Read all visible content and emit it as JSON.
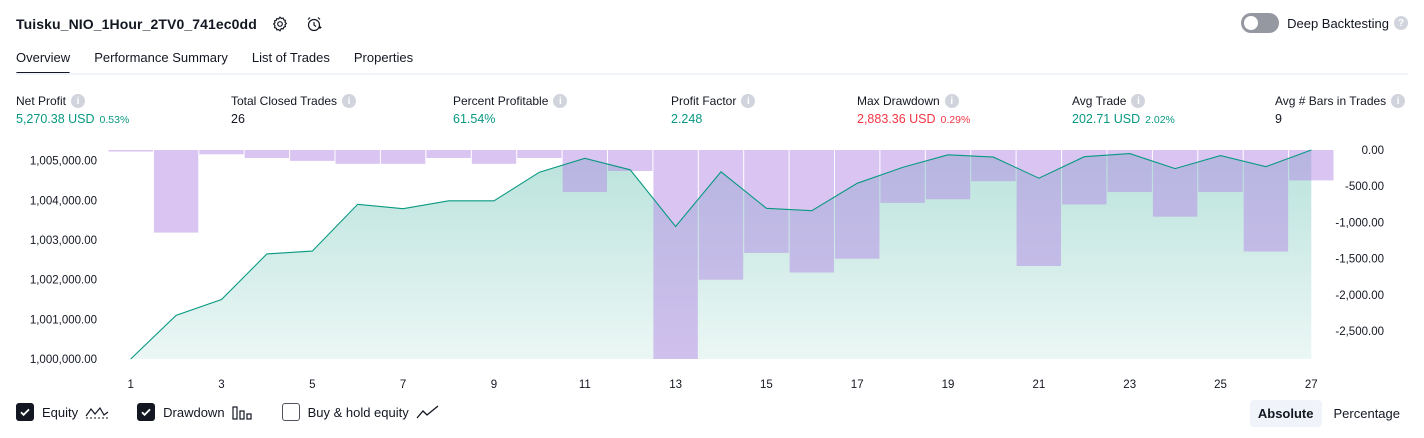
{
  "header": {
    "strategy_title": "Tuisku_NIO_1Hour_2TV0_741ec0dd",
    "settings_icon": "gear-icon",
    "alert_icon": "alarm-clock-icon",
    "deep_backtesting_label": "Deep Backtesting",
    "deep_backtesting_enabled": false
  },
  "tabs": [
    {
      "label": "Overview",
      "active": true
    },
    {
      "label": "Performance Summary",
      "active": false
    },
    {
      "label": "List of Trades",
      "active": false
    },
    {
      "label": "Properties",
      "active": false
    }
  ],
  "metrics": [
    {
      "label": "Net Profit",
      "value": "5,270.38 USD",
      "pct": "0.53%",
      "tone": "pos"
    },
    {
      "label": "Total Closed Trades",
      "value": "26",
      "pct": "",
      "tone": "neutral"
    },
    {
      "label": "Percent Profitable",
      "value": "61.54%",
      "pct": "",
      "tone": "pos"
    },
    {
      "label": "Profit Factor",
      "value": "2.248",
      "pct": "",
      "tone": "pos"
    },
    {
      "label": "Max Drawdown",
      "value": "2,883.36 USD",
      "pct": "0.29%",
      "tone": "neg"
    },
    {
      "label": "Avg Trade",
      "value": "202.71 USD",
      "pct": "2.02%",
      "tone": "pos"
    },
    {
      "label": "Avg # Bars in Trades",
      "value": "9",
      "pct": "",
      "tone": "neutral"
    }
  ],
  "chart_data": {
    "type": "area",
    "x": [
      1,
      2,
      3,
      4,
      5,
      6,
      7,
      8,
      9,
      10,
      11,
      12,
      13,
      14,
      15,
      16,
      17,
      18,
      19,
      20,
      21,
      22,
      23,
      24,
      25,
      26,
      27
    ],
    "x_tick_labels": [
      "1",
      "3",
      "5",
      "7",
      "9",
      "11",
      "13",
      "15",
      "17",
      "19",
      "21",
      "23",
      "25",
      "27"
    ],
    "series": [
      {
        "name": "Equity",
        "axis": "left",
        "color": "#089981",
        "values": [
          1000000,
          1001100,
          1001500,
          1002650,
          1002720,
          1003900,
          1003790,
          1003990,
          1003990,
          1004710,
          1005060,
          1004770,
          1003340,
          1004720,
          1003800,
          1003740,
          1004430,
          1004830,
          1005150,
          1005090,
          1004560,
          1005100,
          1005180,
          1004800,
          1005130,
          1004850,
          1005270
        ]
      },
      {
        "name": "Drawdown",
        "axis": "right",
        "color": "#ce93d8",
        "values": [
          0,
          -1140,
          -60,
          -110,
          -150,
          -190,
          -190,
          -110,
          -190,
          -110,
          -580,
          -290,
          -2883,
          -1790,
          -1420,
          -1690,
          -1500,
          -730,
          -680,
          -430,
          -1600,
          -750,
          -580,
          -920,
          -580,
          -1400,
          -420
        ]
      }
    ],
    "left_axis": {
      "ticks": [
        "1,000,000.00",
        "1,001,000.00",
        "1,002,000.00",
        "1,003,000.00",
        "1,004,000.00",
        "1,005,000.00"
      ],
      "min": 1000000,
      "max": 1005270
    },
    "right_axis": {
      "ticks": [
        "0.00",
        "-500.00",
        "-1,000.00",
        "-1,500.00",
        "-2,000.00",
        "-2,500.00"
      ],
      "min": -2883.36,
      "max": 0
    },
    "grid": false
  },
  "legend": {
    "equity_label": "Equity",
    "equity_checked": true,
    "drawdown_label": "Drawdown",
    "drawdown_checked": true,
    "buyhold_label": "Buy & hold equity",
    "buyhold_checked": false
  },
  "modes": {
    "absolute_label": "Absolute",
    "percentage_label": "Percentage",
    "selected": "Absolute"
  }
}
